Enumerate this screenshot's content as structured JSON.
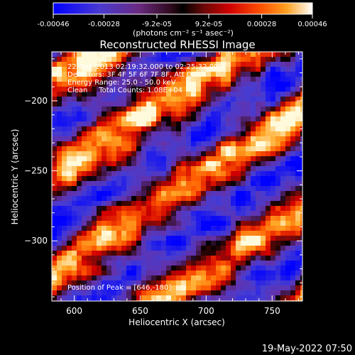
{
  "colorbar": {
    "ticks": [
      "-0.00046",
      "-0.00028",
      "-9.2e-05",
      "9.2e-05",
      "0.00028",
      "0.00046"
    ],
    "tick_values": [
      -0.00046,
      -0.00028,
      -9.2e-05,
      9.2e-05,
      0.00028,
      0.00046
    ],
    "unit_label": "(photons cm⁻² s⁻¹ asec⁻²)",
    "colors": [
      "#0000ff",
      "#5a2aa8",
      "#6a1e40",
      "#000000",
      "#701010",
      "#d80000",
      "#ff5a00",
      "#ffa020",
      "#ffe060",
      "#ffffff"
    ]
  },
  "title": "Reconstructed RHESSI Image",
  "info": {
    "time": "22-Dec-2013 02:19:32.000 to 02:25:32.000",
    "detectors": "Detectors: 3F 4F 5F 6F 7F 8F, Att 0",
    "energy": "Energy Range: 25.0 - 50.0 keV",
    "clean": "Clean     Total Counts: 1.08E+04"
  },
  "peak": "Position of Peak = [646,-180]",
  "footer_date": "19-May-2022 07:50",
  "chart_data": {
    "type": "heatmap",
    "title": "Reconstructed RHESSI Image",
    "xlabel": "Heliocentric X (arcsec)",
    "ylabel": "Heliocentric Y (arcsec)",
    "xlim": [
      583,
      773
    ],
    "ylim": [
      -343,
      -165
    ],
    "x_ticks": [
      600,
      650,
      700,
      750
    ],
    "y_ticks": [
      -200,
      -250,
      -300
    ],
    "x_tick_labels": [
      "600",
      "650",
      "700",
      "750"
    ],
    "y_tick_labels": [
      "−200",
      "−250",
      "−300"
    ],
    "value_range": [
      -0.00046,
      0.00046
    ],
    "peak_position": [
      646,
      -180
    ]
  }
}
